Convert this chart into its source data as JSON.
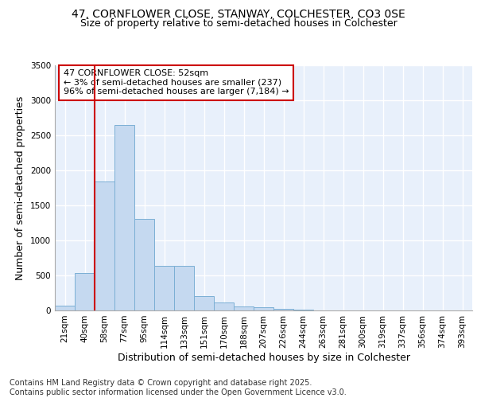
{
  "title_line1": "47, CORNFLOWER CLOSE, STANWAY, COLCHESTER, CO3 0SE",
  "title_line2": "Size of property relative to semi-detached houses in Colchester",
  "xlabel": "Distribution of semi-detached houses by size in Colchester",
  "ylabel": "Number of semi-detached properties",
  "bins": [
    "21sqm",
    "40sqm",
    "58sqm",
    "77sqm",
    "95sqm",
    "114sqm",
    "133sqm",
    "151sqm",
    "170sqm",
    "188sqm",
    "207sqm",
    "226sqm",
    "244sqm",
    "263sqm",
    "281sqm",
    "300sqm",
    "319sqm",
    "337sqm",
    "356sqm",
    "374sqm",
    "393sqm"
  ],
  "values": [
    70,
    530,
    1840,
    2650,
    1310,
    640,
    640,
    210,
    110,
    55,
    40,
    20,
    10,
    5,
    2,
    1,
    0,
    0,
    0,
    0,
    0
  ],
  "bar_color": "#c5d9f0",
  "bar_edge_color": "#7bafd4",
  "vline_color": "#cc0000",
  "vline_x_index": 2,
  "annotation_text": "47 CORNFLOWER CLOSE: 52sqm\n← 3% of semi-detached houses are smaller (237)\n96% of semi-detached houses are larger (7,184) →",
  "annotation_box_color": "#cc0000",
  "ylim": [
    0,
    3500
  ],
  "yticks": [
    0,
    500,
    1000,
    1500,
    2000,
    2500,
    3000,
    3500
  ],
  "background_color": "#e8f0fb",
  "grid_color": "#ffffff",
  "footer_line1": "Contains HM Land Registry data © Crown copyright and database right 2025.",
  "footer_line2": "Contains public sector information licensed under the Open Government Licence v3.0.",
  "title_fontsize": 10,
  "subtitle_fontsize": 9,
  "axis_label_fontsize": 9,
  "tick_fontsize": 7.5,
  "annotation_fontsize": 8,
  "footer_fontsize": 7
}
